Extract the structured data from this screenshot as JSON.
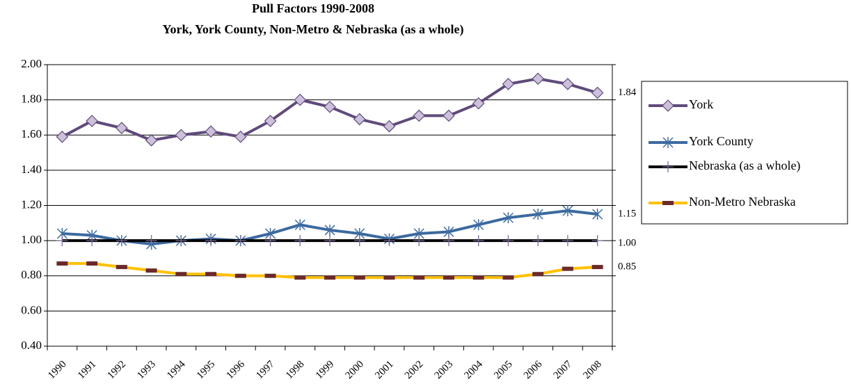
{
  "chart_data": {
    "type": "line",
    "title": "Pull Factors 1990-2008",
    "subtitle": "York, York County, Non-Metro & Nebraska (as a whole)",
    "categories": [
      "1990",
      "1991",
      "1992",
      "1993",
      "1994",
      "1995",
      "1996",
      "1997",
      "1998",
      "1999",
      "2000",
      "2001",
      "2002",
      "2003",
      "2004",
      "2005",
      "2006",
      "2007",
      "2008"
    ],
    "series": [
      {
        "name": "York",
        "color": "#604a7b",
        "marker": "diamond",
        "marker_color": "#ccc0da",
        "end_label": "1.84",
        "values": [
          1.59,
          1.68,
          1.64,
          1.57,
          1.6,
          1.62,
          1.59,
          1.68,
          1.8,
          1.76,
          1.69,
          1.65,
          1.71,
          1.71,
          1.78,
          1.89,
          1.92,
          1.89,
          1.84
        ]
      },
      {
        "name": "York County",
        "color": "#3c6aa0",
        "marker": "star",
        "marker_color": "#3c6aa0",
        "end_label": "1.15",
        "values": [
          1.04,
          1.03,
          1.0,
          0.98,
          1.0,
          1.01,
          1.0,
          1.04,
          1.09,
          1.06,
          1.04,
          1.01,
          1.04,
          1.05,
          1.09,
          1.13,
          1.15,
          1.17,
          1.15
        ]
      },
      {
        "name": "Nebraska (as a whole)",
        "color": "#000000",
        "marker": "plus",
        "marker_color": "#7d6a9b",
        "end_label": "1.00",
        "values": [
          1.0,
          1.0,
          1.0,
          1.0,
          1.0,
          1.0,
          1.0,
          1.0,
          1.0,
          1.0,
          1.0,
          1.0,
          1.0,
          1.0,
          1.0,
          1.0,
          1.0,
          1.0,
          1.0
        ]
      },
      {
        "name": "Non-Metro Nebraska",
        "color": "#ffc000",
        "marker": "dash",
        "marker_color": "#6b2a2a",
        "end_label": "0.85",
        "values": [
          0.87,
          0.87,
          0.85,
          0.83,
          0.81,
          0.81,
          0.8,
          0.8,
          0.79,
          0.79,
          0.79,
          0.79,
          0.79,
          0.79,
          0.79,
          0.79,
          0.81,
          0.84,
          0.85
        ]
      }
    ],
    "ylim": [
      0.4,
      2.0
    ],
    "yticks": [
      {
        "value": 0.4,
        "label": "0.40"
      },
      {
        "value": 0.6,
        "label": "0.60"
      },
      {
        "value": 0.8,
        "label": "0.80"
      },
      {
        "value": 1.0,
        "label": "1.00"
      },
      {
        "value": 1.2,
        "label": "1.20"
      },
      {
        "value": 1.4,
        "label": "1.40"
      },
      {
        "value": 1.6,
        "label": "1.60"
      },
      {
        "value": 1.8,
        "label": "1.80"
      },
      {
        "value": 2.0,
        "label": "2.00"
      }
    ],
    "grid": true,
    "legend": "right"
  }
}
